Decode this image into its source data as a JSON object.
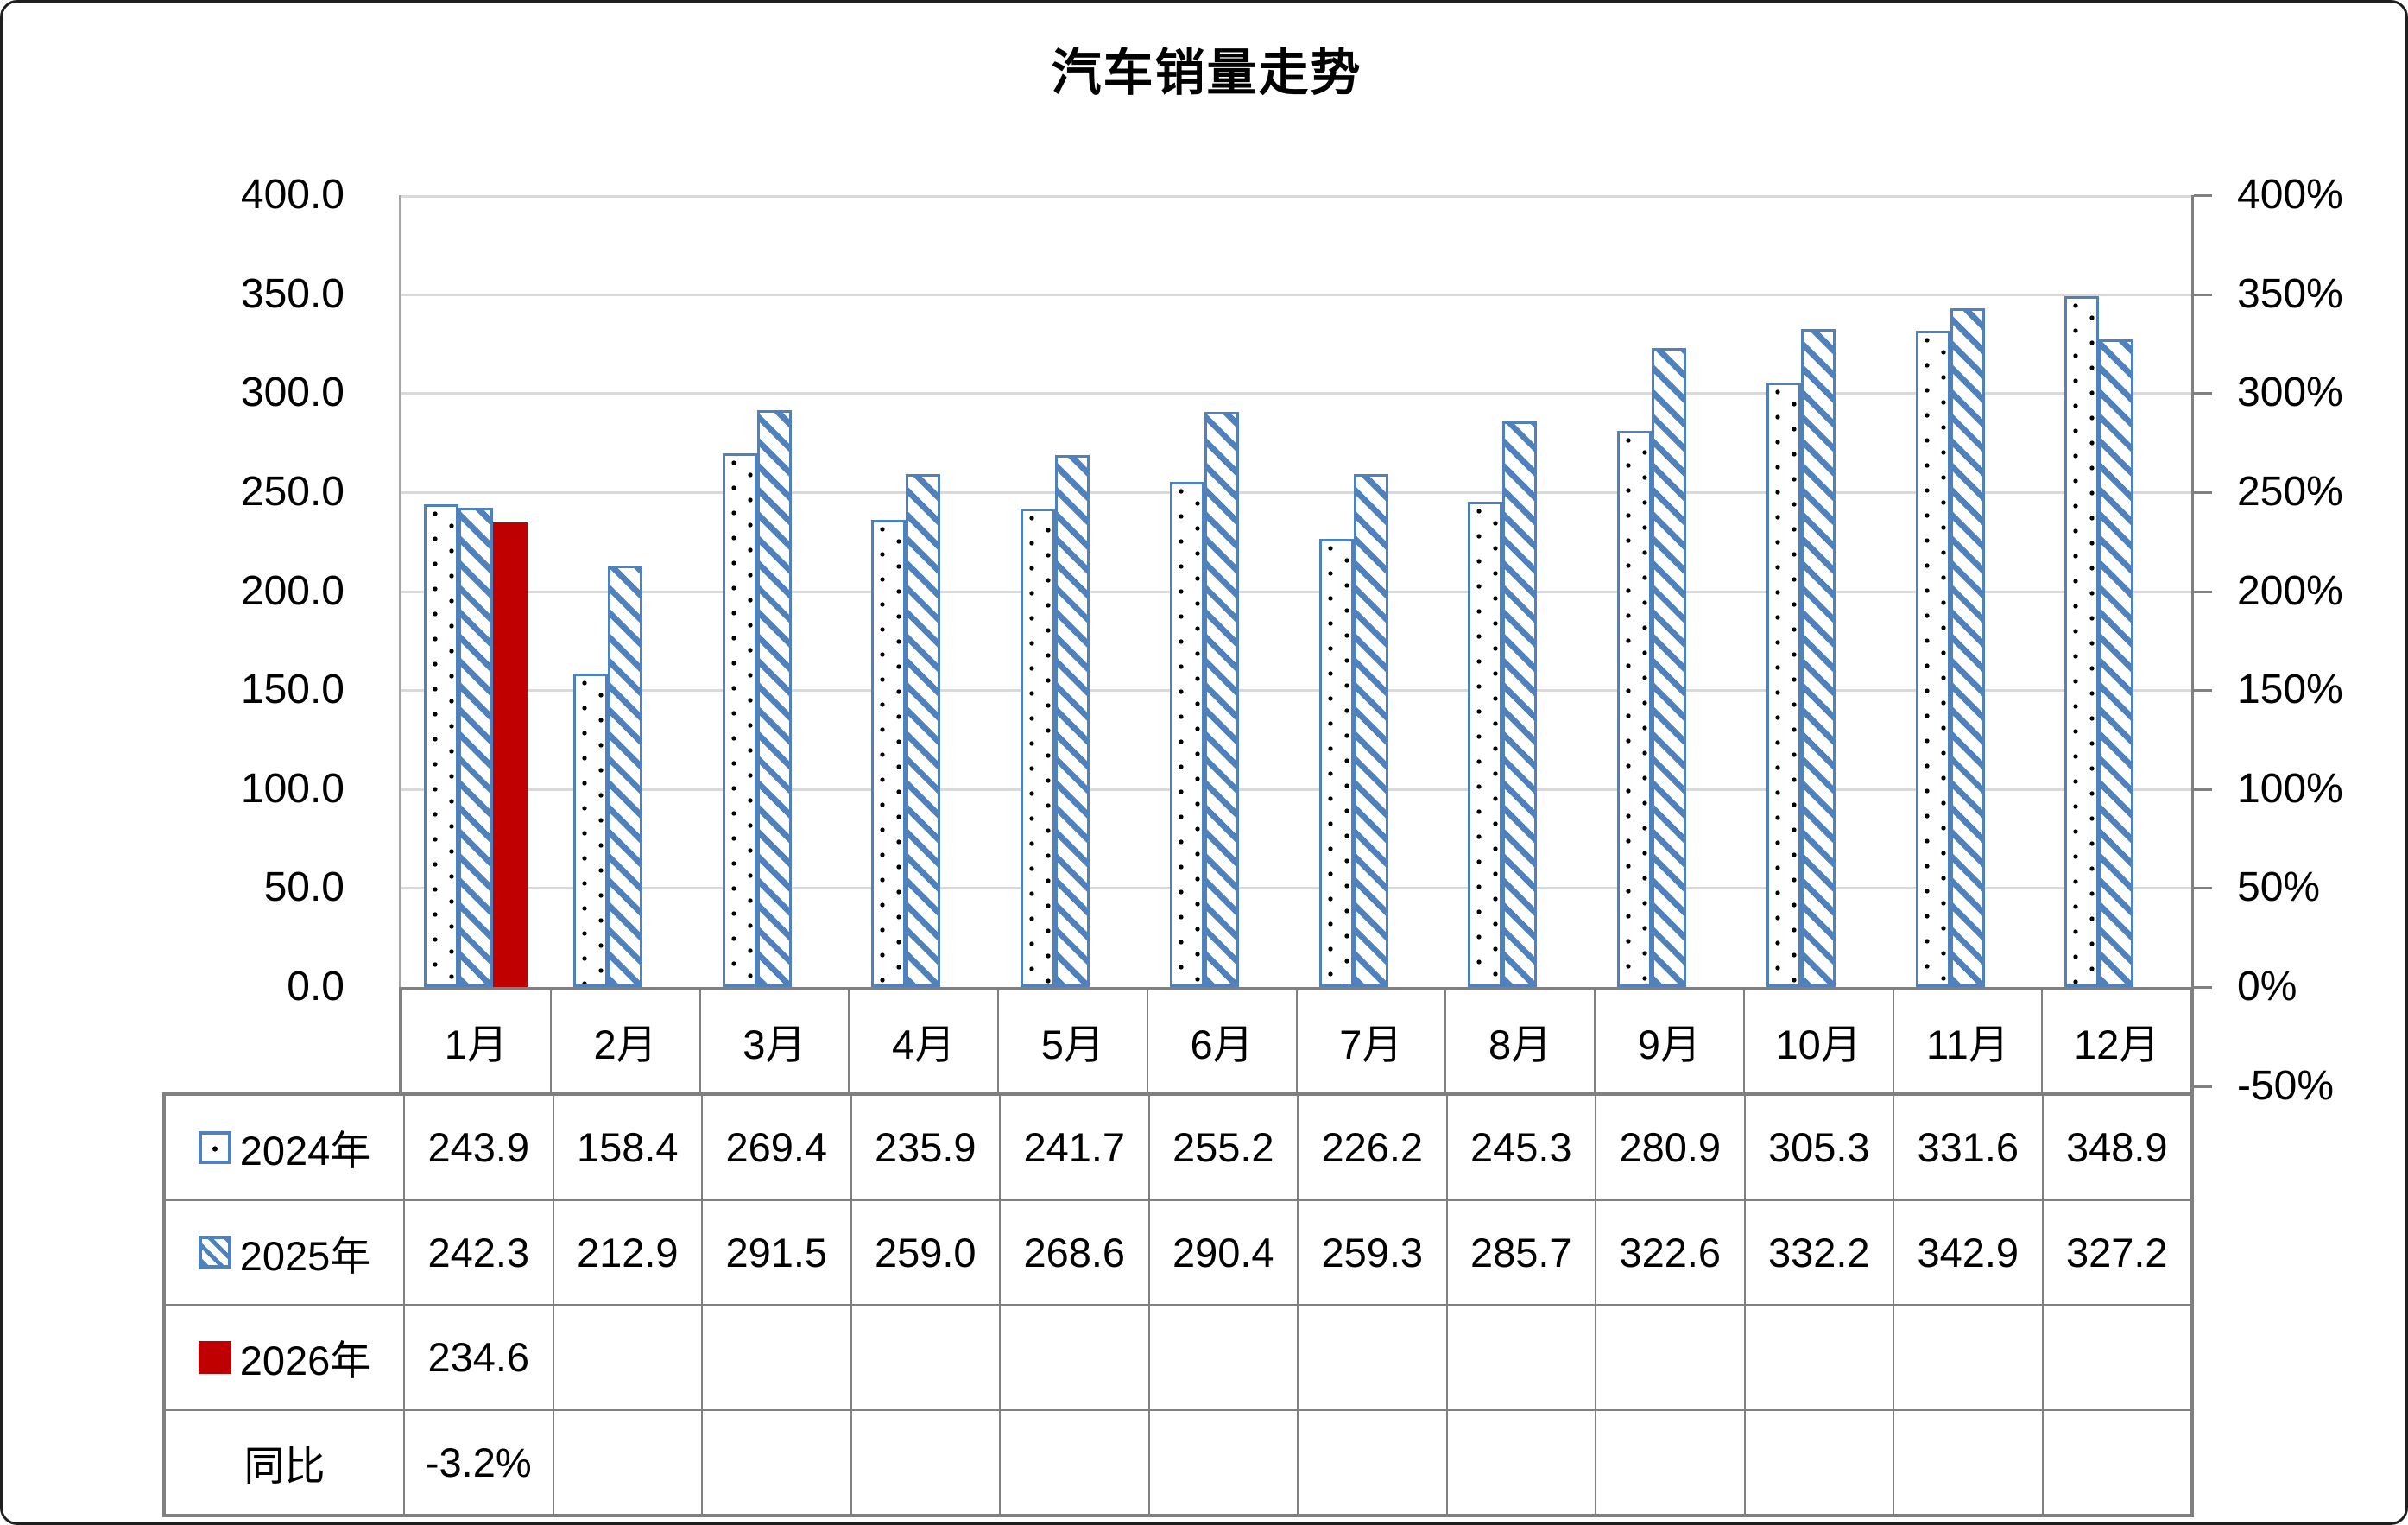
{
  "title": "汽车销量走势",
  "chart_data": {
    "type": "bar",
    "title": "汽车销量走势",
    "categories": [
      "1月",
      "2月",
      "3月",
      "4月",
      "5月",
      "6月",
      "7月",
      "8月",
      "9月",
      "10月",
      "11月",
      "12月"
    ],
    "series": [
      {
        "name": "2024年",
        "pattern": "dots",
        "color": "#4F81BD",
        "values": [
          243.9,
          158.4,
          269.4,
          235.9,
          241.7,
          255.2,
          226.2,
          245.3,
          280.9,
          305.3,
          331.6,
          348.9
        ]
      },
      {
        "name": "2025年",
        "pattern": "diagonal",
        "color": "#4F81BD",
        "values": [
          242.3,
          212.9,
          291.5,
          259.0,
          268.6,
          290.4,
          259.3,
          285.7,
          322.6,
          332.2,
          342.9,
          327.2
        ]
      },
      {
        "name": "2026年",
        "pattern": "solid",
        "color": "#C00000",
        "values": [
          234.6,
          null,
          null,
          null,
          null,
          null,
          null,
          null,
          null,
          null,
          null,
          null
        ]
      }
    ],
    "yoy_row": {
      "name": "同比",
      "values": [
        "-3.2%",
        "",
        "",
        "",
        "",
        "",
        "",
        "",
        "",
        "",
        "",
        ""
      ]
    },
    "left_axis": {
      "min": 0,
      "max": 400,
      "step": 50,
      "tick_labels": [
        "400.0",
        "350.0",
        "300.0",
        "250.0",
        "200.0",
        "150.0",
        "100.0",
        "50.0",
        "0.0"
      ]
    },
    "right_axis": {
      "min": -50,
      "max": 400,
      "step": 50,
      "tick_labels": [
        "400%",
        "350%",
        "300%",
        "250%",
        "200%",
        "150%",
        "100%",
        "50%",
        "0%",
        "-50%"
      ]
    },
    "grid": true,
    "legend_position": "table-left",
    "colors": {
      "bar_blue": "#4F81BD",
      "bar_red": "#C00000",
      "gridline": "#D9D9D9",
      "axis_line": "#A6A6A6",
      "table_border": "#808080"
    }
  },
  "table": {
    "columns": [
      "1月",
      "2月",
      "3月",
      "4月",
      "5月",
      "6月",
      "7月",
      "8月",
      "9月",
      "10月",
      "11月",
      "12月"
    ],
    "rows": [
      {
        "label": "2024年",
        "key": "dots",
        "values": [
          "243.9",
          "158.4",
          "269.4",
          "235.9",
          "241.7",
          "255.2",
          "226.2",
          "245.3",
          "280.9",
          "305.3",
          "331.6",
          "348.9"
        ]
      },
      {
        "label": "2025年",
        "key": "diagonal",
        "values": [
          "242.3",
          "212.9",
          "291.5",
          "259.0",
          "268.6",
          "290.4",
          "259.3",
          "285.7",
          "322.6",
          "332.2",
          "342.9",
          "327.2"
        ]
      },
      {
        "label": "2026年",
        "key": "solid-red",
        "values": [
          "234.6",
          "",
          "",
          "",
          "",
          "",
          "",
          "",
          "",
          "",
          "",
          ""
        ]
      },
      {
        "label": "同比",
        "key": "none",
        "values": [
          "-3.2%",
          "",
          "",
          "",
          "",
          "",
          "",
          "",
          "",
          "",
          "",
          ""
        ]
      }
    ]
  }
}
